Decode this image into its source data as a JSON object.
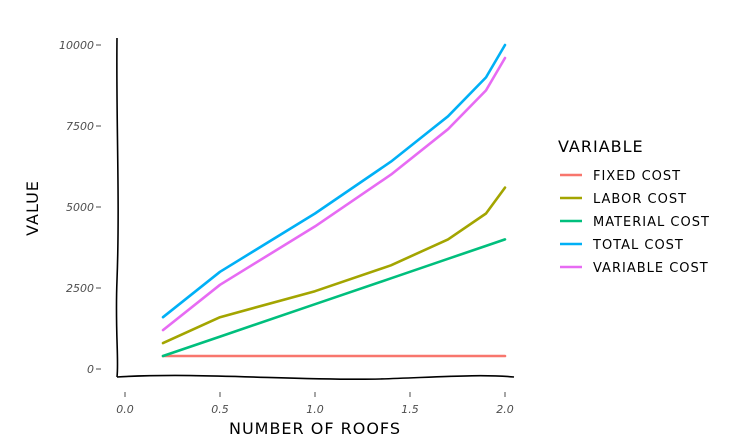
{
  "chart_data": {
    "type": "line",
    "title": "",
    "xlabel": "NUMBER OF ROOFS",
    "ylabel": "VALUE",
    "xlim": [
      0,
      2.0
    ],
    "ylim": [
      0,
      10000
    ],
    "x_ticks": [
      "0.0",
      "0.5",
      "1.0",
      "1.5",
      "2.0"
    ],
    "y_ticks": [
      "0",
      "2500",
      "5000",
      "7500",
      "10000"
    ],
    "x_tick_values": [
      0,
      0.5,
      1.0,
      1.5,
      2.0
    ],
    "y_tick_values": [
      0,
      2500,
      5000,
      7500,
      10000
    ],
    "grid": false,
    "legend": {
      "title": "VARIABLE",
      "placement": "right"
    },
    "x": [
      0.2,
      0.5,
      1.0,
      1.4,
      1.7,
      1.9,
      2.0
    ],
    "series": [
      {
        "name": "FIXED COST",
        "color": "#F8766D",
        "values": [
          400,
          400,
          400,
          400,
          400,
          400,
          400
        ]
      },
      {
        "name": "LABOR COST",
        "color": "#A3A500",
        "values": [
          800,
          1600,
          2400,
          3200,
          4000,
          4800,
          5600
        ]
      },
      {
        "name": "MATERIAL COST",
        "color": "#00BF7D",
        "values": [
          400,
          1000,
          2000,
          2800,
          3400,
          3800,
          4000
        ]
      },
      {
        "name": "TOTAL COST",
        "color": "#00B0F6",
        "values": [
          1600,
          3000,
          4800,
          6400,
          7800,
          9000,
          10000
        ]
      },
      {
        "name": "VARIABLE COST",
        "color": "#E76BF3",
        "values": [
          1200,
          2600,
          4400,
          6000,
          7400,
          8600,
          9600
        ]
      }
    ]
  }
}
